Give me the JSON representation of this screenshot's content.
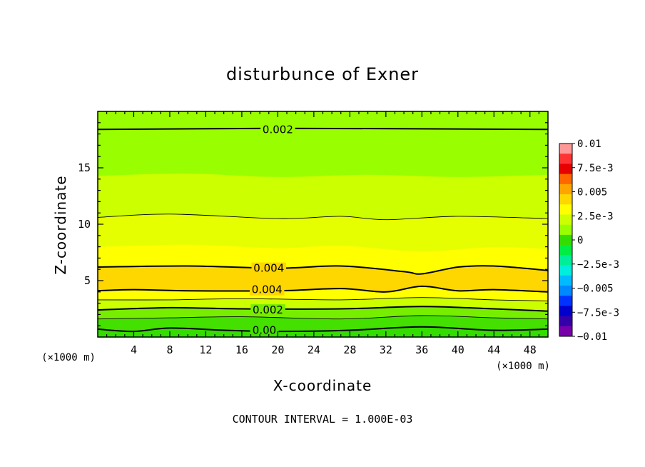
{
  "chart_data": {
    "type": "heatmap",
    "title": "disturbunce of Exner",
    "xlabel": "X-coordinate",
    "ylabel": "Z-coordinate",
    "x_unit": "(×1000 m)",
    "y_unit": "(×1000 m)",
    "xlim": [
      0,
      50
    ],
    "ylim": [
      0,
      20
    ],
    "x_ticks": [
      4,
      8,
      12,
      16,
      20,
      24,
      28,
      32,
      36,
      40,
      44,
      48
    ],
    "y_ticks": [
      5,
      10,
      15
    ],
    "contour_interval_note": "CONTOUR INTERVAL = 1.000E-03",
    "colorbar": {
      "tick_labels": [
        "0.01",
        "7.5e-3",
        "0.005",
        "2.5e-3",
        "0",
        "−2.5e-3",
        "−0.005",
        "−7.5e-3",
        "−0.01"
      ],
      "tick_values": [
        0.01,
        0.0075,
        0.005,
        0.0025,
        0,
        -0.0025,
        -0.005,
        -0.0075,
        -0.01
      ],
      "colors": [
        "#ff9999",
        "#ff3333",
        "#e60000",
        "#ff6600",
        "#ffa500",
        "#ffd700",
        "#ffff00",
        "#ccff00",
        "#99ff00",
        "#33dd00",
        "#00ee44",
        "#00ee99",
        "#00eedd",
        "#00bbff",
        "#0088ff",
        "#0033ff",
        "#0000cc",
        "#3300aa",
        "#7700aa"
      ]
    },
    "contour_labels": [
      {
        "text": "0.002",
        "x": 20,
        "z": 18.4
      },
      {
        "text": "0.004",
        "x": 19,
        "z": 6.1
      },
      {
        "text": "0.004",
        "x": 18.8,
        "z": 4.2
      },
      {
        "text": "0.002",
        "x": 18.9,
        "z": 2.4
      },
      {
        "text": "0.00",
        "x": 18.5,
        "z": 0.6
      }
    ],
    "contours": [
      {
        "level": 0.002,
        "style": "bold",
        "points": [
          [
            0,
            18.4
          ],
          [
            20,
            18.5
          ],
          [
            50,
            18.4
          ]
        ]
      },
      {
        "level": 0.003,
        "style": "thin",
        "points": [
          [
            0,
            10.6
          ],
          [
            8,
            10.9
          ],
          [
            20,
            10.5
          ],
          [
            27,
            10.7
          ],
          [
            32,
            10.4
          ],
          [
            40,
            10.7
          ],
          [
            50,
            10.5
          ]
        ]
      },
      {
        "level": 0.004,
        "style": "bold",
        "points": [
          [
            0,
            6.2
          ],
          [
            10,
            6.3
          ],
          [
            20,
            6.1
          ],
          [
            27,
            6.3
          ],
          [
            34,
            5.8
          ],
          [
            36,
            5.6
          ],
          [
            40,
            6.2
          ],
          [
            44,
            6.3
          ],
          [
            50,
            5.9
          ]
        ]
      },
      {
        "level": 0.004,
        "style": "bold",
        "points": [
          [
            0,
            4.1
          ],
          [
            4,
            4.2
          ],
          [
            10,
            4.1
          ],
          [
            20,
            4.1
          ],
          [
            27,
            4.3
          ],
          [
            32,
            4.0
          ],
          [
            36,
            4.5
          ],
          [
            40,
            4.1
          ],
          [
            44,
            4.2
          ],
          [
            50,
            4.0
          ]
        ]
      },
      {
        "level": 0.003,
        "style": "thin",
        "points": [
          [
            0,
            3.3
          ],
          [
            8,
            3.3
          ],
          [
            16,
            3.4
          ],
          [
            27,
            3.3
          ],
          [
            36,
            3.5
          ],
          [
            44,
            3.3
          ],
          [
            50,
            3.2
          ]
        ]
      },
      {
        "level": 0.002,
        "style": "bold",
        "points": [
          [
            0,
            2.4
          ],
          [
            8,
            2.6
          ],
          [
            16,
            2.5
          ],
          [
            27,
            2.5
          ],
          [
            36,
            2.7
          ],
          [
            44,
            2.5
          ],
          [
            50,
            2.3
          ]
        ]
      },
      {
        "level": 0.001,
        "style": "thin",
        "points": [
          [
            0,
            1.6
          ],
          [
            8,
            1.7
          ],
          [
            16,
            1.8
          ],
          [
            27,
            1.6
          ],
          [
            36,
            1.9
          ],
          [
            44,
            1.7
          ],
          [
            50,
            1.6
          ]
        ]
      },
      {
        "level": 0.0,
        "style": "bold",
        "points": [
          [
            0,
            0.7
          ],
          [
            4,
            0.5
          ],
          [
            8,
            0.8
          ],
          [
            14,
            0.6
          ],
          [
            20,
            0.5
          ],
          [
            28,
            0.6
          ],
          [
            36,
            0.9
          ],
          [
            44,
            0.6
          ],
          [
            50,
            0.7
          ]
        ]
      }
    ],
    "fill_bands": [
      {
        "lower": null,
        "upper": [
          [
            0,
            0.7
          ],
          [
            4,
            0.5
          ],
          [
            8,
            0.8
          ],
          [
            14,
            0.6
          ],
          [
            20,
            0.5
          ],
          [
            28,
            0.6
          ],
          [
            36,
            0.9
          ],
          [
            44,
            0.6
          ],
          [
            50,
            0.7
          ]
        ],
        "color": "#33dd00"
      },
      {
        "lower": [
          [
            0,
            0.7
          ],
          [
            4,
            0.5
          ],
          [
            8,
            0.8
          ],
          [
            14,
            0.6
          ],
          [
            20,
            0.5
          ],
          [
            28,
            0.6
          ],
          [
            36,
            0.9
          ],
          [
            44,
            0.6
          ],
          [
            50,
            0.7
          ]
        ],
        "upper": [
          [
            0,
            1.6
          ],
          [
            8,
            1.7
          ],
          [
            16,
            1.8
          ],
          [
            27,
            1.6
          ],
          [
            36,
            1.9
          ],
          [
            44,
            1.7
          ],
          [
            50,
            1.6
          ]
        ],
        "color": "#44e000"
      },
      {
        "lower": [
          [
            0,
            1.6
          ],
          [
            8,
            1.7
          ],
          [
            16,
            1.8
          ],
          [
            27,
            1.6
          ],
          [
            36,
            1.9
          ],
          [
            44,
            1.7
          ],
          [
            50,
            1.6
          ]
        ],
        "upper": [
          [
            0,
            2.4
          ],
          [
            8,
            2.6
          ],
          [
            16,
            2.5
          ],
          [
            27,
            2.5
          ],
          [
            36,
            2.7
          ],
          [
            44,
            2.5
          ],
          [
            50,
            2.3
          ]
        ],
        "color": "#77ee00"
      },
      {
        "lower": [
          [
            0,
            2.4
          ],
          [
            8,
            2.6
          ],
          [
            16,
            2.5
          ],
          [
            27,
            2.5
          ],
          [
            36,
            2.7
          ],
          [
            44,
            2.5
          ],
          [
            50,
            2.3
          ]
        ],
        "upper": [
          [
            0,
            3.3
          ],
          [
            8,
            3.3
          ],
          [
            16,
            3.4
          ],
          [
            27,
            3.3
          ],
          [
            36,
            3.5
          ],
          [
            44,
            3.3
          ],
          [
            50,
            3.2
          ]
        ],
        "color": "#ccff00"
      },
      {
        "lower": [
          [
            0,
            3.3
          ],
          [
            8,
            3.3
          ],
          [
            16,
            3.4
          ],
          [
            27,
            3.3
          ],
          [
            36,
            3.5
          ],
          [
            44,
            3.3
          ],
          [
            50,
            3.2
          ]
        ],
        "upper": [
          [
            0,
            4.1
          ],
          [
            4,
            4.2
          ],
          [
            10,
            4.1
          ],
          [
            20,
            4.1
          ],
          [
            27,
            4.3
          ],
          [
            32,
            4.0
          ],
          [
            36,
            4.5
          ],
          [
            40,
            4.1
          ],
          [
            44,
            4.2
          ],
          [
            50,
            4.0
          ]
        ],
        "color": "#ffff00"
      },
      {
        "lower": [
          [
            0,
            4.1
          ],
          [
            4,
            4.2
          ],
          [
            10,
            4.1
          ],
          [
            20,
            4.1
          ],
          [
            27,
            4.3
          ],
          [
            32,
            4.0
          ],
          [
            36,
            4.5
          ],
          [
            40,
            4.1
          ],
          [
            44,
            4.2
          ],
          [
            50,
            4.0
          ]
        ],
        "upper": [
          [
            0,
            6.2
          ],
          [
            10,
            6.3
          ],
          [
            20,
            6.1
          ],
          [
            27,
            6.3
          ],
          [
            34,
            5.8
          ],
          [
            36,
            5.6
          ],
          [
            40,
            6.2
          ],
          [
            44,
            6.3
          ],
          [
            50,
            5.9
          ]
        ],
        "color": "#ffd700"
      },
      {
        "lower": [
          [
            0,
            6.2
          ],
          [
            10,
            6.3
          ],
          [
            20,
            6.1
          ],
          [
            27,
            6.3
          ],
          [
            34,
            5.8
          ],
          [
            36,
            5.6
          ],
          [
            40,
            6.2
          ],
          [
            44,
            6.3
          ],
          [
            50,
            5.9
          ]
        ],
        "upper": [
          [
            0,
            8.0
          ],
          [
            10,
            8.2
          ],
          [
            20,
            7.9
          ],
          [
            27,
            8.1
          ],
          [
            36,
            7.6
          ],
          [
            44,
            8.0
          ],
          [
            50,
            7.8
          ]
        ],
        "color": "#ffff00"
      },
      {
        "lower": [
          [
            0,
            8.0
          ],
          [
            10,
            8.2
          ],
          [
            20,
            7.9
          ],
          [
            27,
            8.1
          ],
          [
            36,
            7.6
          ],
          [
            44,
            8.0
          ],
          [
            50,
            7.8
          ]
        ],
        "upper": [
          [
            0,
            10.6
          ],
          [
            8,
            10.9
          ],
          [
            20,
            10.5
          ],
          [
            27,
            10.7
          ],
          [
            32,
            10.4
          ],
          [
            40,
            10.7
          ],
          [
            50,
            10.5
          ]
        ],
        "color": "#e6ff00"
      },
      {
        "lower": [
          [
            0,
            10.6
          ],
          [
            8,
            10.9
          ],
          [
            20,
            10.5
          ],
          [
            27,
            10.7
          ],
          [
            32,
            10.4
          ],
          [
            40,
            10.7
          ],
          [
            50,
            10.5
          ]
        ],
        "upper": [
          [
            0,
            14.3
          ],
          [
            10,
            14.5
          ],
          [
            20,
            14.2
          ],
          [
            30,
            14.4
          ],
          [
            40,
            14.2
          ],
          [
            50,
            14.4
          ]
        ],
        "color": "#ccff00"
      },
      {
        "lower": [
          [
            0,
            14.3
          ],
          [
            10,
            14.5
          ],
          [
            20,
            14.2
          ],
          [
            30,
            14.4
          ],
          [
            40,
            14.2
          ],
          [
            50,
            14.4
          ]
        ],
        "upper": null,
        "color": "#99ff00"
      }
    ]
  }
}
